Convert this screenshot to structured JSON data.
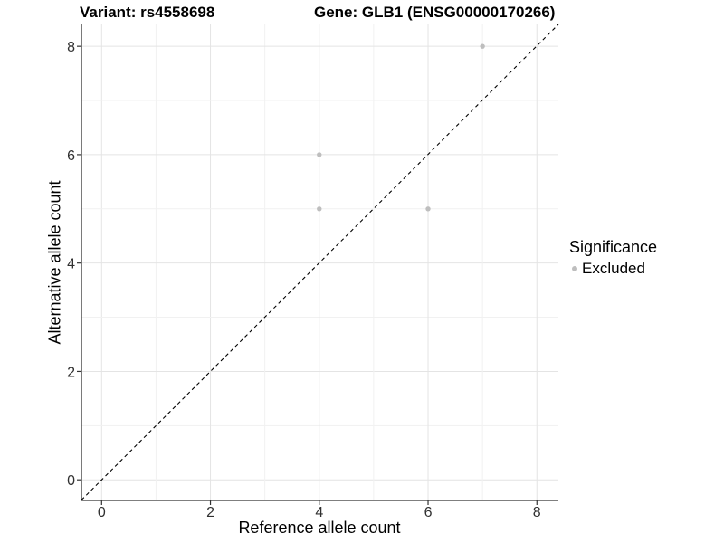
{
  "chart_data": {
    "type": "scatter",
    "title_left": "Variant: rs4558698",
    "title_right": "Gene: GLB1 (ENSG00000170266)",
    "xlabel": "Reference allele count",
    "ylabel": "Alternative allele count",
    "x_ticks": [
      0,
      2,
      4,
      6,
      8
    ],
    "y_ticks": [
      0,
      2,
      4,
      6,
      8
    ],
    "xlim": [
      -0.4,
      8.4
    ],
    "ylim": [
      -0.4,
      8.4
    ],
    "grid": "light gray major gridlines at even integers, minor at odd integers",
    "series": [
      {
        "name": "Excluded",
        "color": "#bebebe",
        "points": [
          [
            4,
            5
          ],
          [
            4,
            6
          ],
          [
            6,
            5
          ],
          [
            7,
            8
          ]
        ]
      }
    ],
    "reference_line": {
      "type": "identity y=x",
      "style": "dashed",
      "color": "#000000"
    },
    "legend": {
      "title": "Significance",
      "position": "right",
      "items": [
        {
          "label": "Excluded",
          "color": "#bebebe"
        }
      ]
    },
    "colors": {
      "point": "#bebebe",
      "axis_line": "#333333",
      "tick_label": "#303030",
      "grid_major": "#e4e4e4",
      "grid_minor": "#f1f1f1",
      "background": "#ffffff"
    }
  }
}
